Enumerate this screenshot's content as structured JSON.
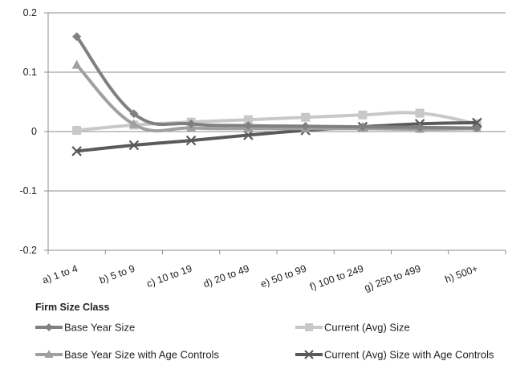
{
  "chart_data": {
    "type": "line",
    "xlabel": "Firm Size Class",
    "ylabel": "",
    "categories": [
      "a) 1 to 4",
      "b) 5 to 9",
      "c) 10 to 19",
      "d) 20 to 49",
      "e) 50 to 99",
      "f) 100 to 249",
      "g) 250 to 499",
      "h) 500+"
    ],
    "ylim": [
      -0.2,
      0.2
    ],
    "yticks": [
      "0.2",
      "0.1",
      "0",
      "-0.1",
      "-0.2"
    ],
    "ytick_values": [
      0.2,
      0.1,
      0,
      -0.1,
      -0.2
    ],
    "grid": true,
    "legend_position": "bottom",
    "series": [
      {
        "name": "Base Year Size",
        "color": "#808080",
        "marker": "diamond",
        "values": [
          0.16,
          0.03,
          0.013,
          0.01,
          0.009,
          0.008,
          0.007,
          0.006
        ]
      },
      {
        "name": "Current (Avg) Size",
        "color": "#c8c8c8",
        "marker": "square",
        "values": [
          0.002,
          0.011,
          0.016,
          0.02,
          0.024,
          0.028,
          0.031,
          0.013
        ]
      },
      {
        "name": "Base Year Size with Age Controls",
        "color": "#a0a0a0",
        "marker": "triangle",
        "values": [
          0.112,
          0.012,
          0.006,
          0.005,
          0.005,
          0.005,
          0.004,
          0.005
        ]
      },
      {
        "name": "Current (Avg) Size with Age Controls",
        "color": "#5a5a5a",
        "marker": "x",
        "values": [
          -0.033,
          -0.023,
          -0.015,
          -0.006,
          0.002,
          0.008,
          0.013,
          0.015
        ]
      }
    ]
  }
}
